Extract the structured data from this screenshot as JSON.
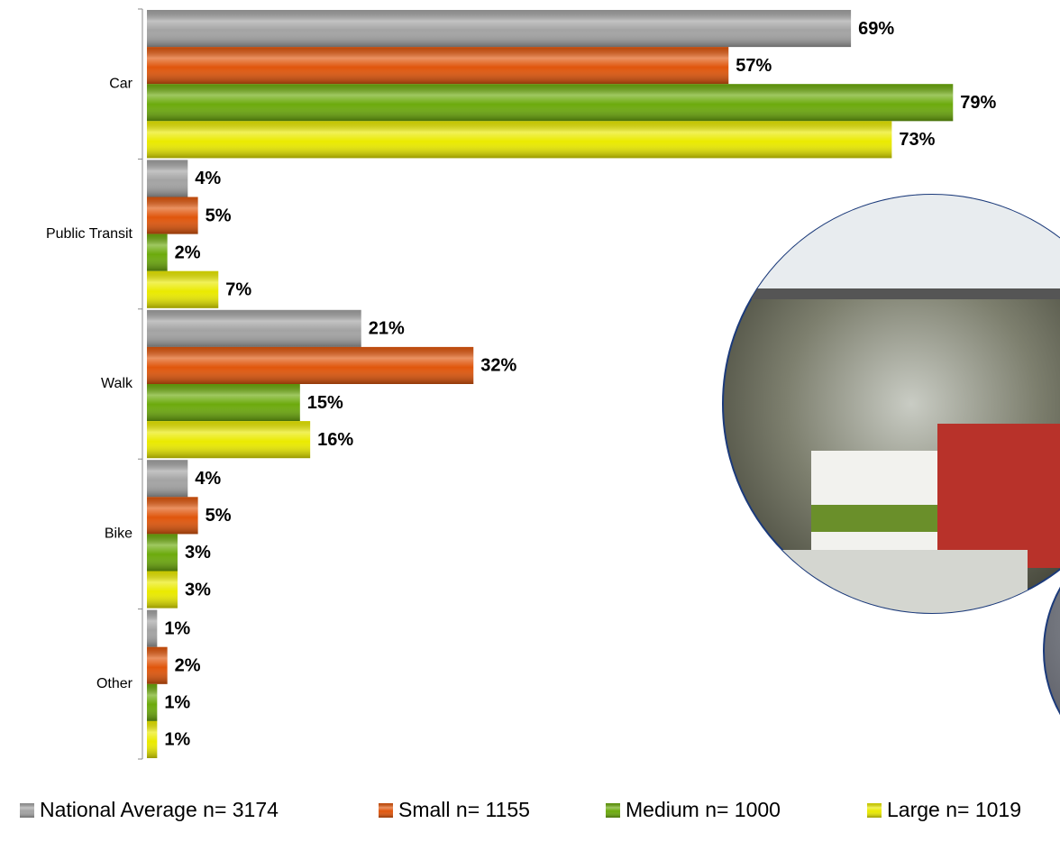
{
  "chart_data": {
    "type": "bar",
    "orientation": "horizontal",
    "categories": [
      "Car",
      "Public Transit",
      "Walk",
      "Bike",
      "Other"
    ],
    "series": [
      {
        "name": "National Average n= 3174",
        "color": "#a3a3a3",
        "values": [
          69,
          4,
          21,
          4,
          1
        ],
        "value_labels": [
          "69%",
          "4%",
          "21%",
          "4%",
          "1%"
        ]
      },
      {
        "name": "Small n= 1155",
        "color": "#e0560c",
        "values": [
          57,
          5,
          32,
          5,
          2
        ],
        "value_labels": [
          "57%",
          "5%",
          "32%",
          "5%",
          "2%"
        ]
      },
      {
        "name": "Medium n= 1000",
        "color": "#6caa0c",
        "values": [
          79,
          2,
          15,
          3,
          1
        ],
        "value_labels": [
          "79%",
          "2%",
          "15%",
          "3%",
          "1%"
        ]
      },
      {
        "name": "Large n= 1019",
        "color": "#eaea00",
        "values": [
          73,
          7,
          16,
          3,
          1
        ],
        "value_labels": [
          "73%",
          "7%",
          "16%",
          "3%",
          "1%"
        ]
      }
    ],
    "legend": "bottom"
  }
}
